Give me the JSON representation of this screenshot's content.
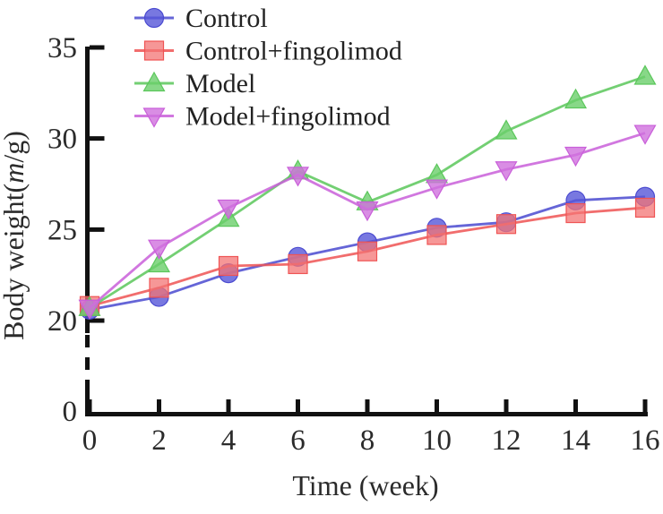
{
  "figure": {
    "background": "#ffffff",
    "axis_color": "#111111",
    "text_color": "#2b2b2b"
  },
  "chart_data": {
    "type": "line",
    "title": "",
    "xlabel": "Time (week)",
    "ylabel": "Body weight(m/g)",
    "ylabel_parts": {
      "prefix": "Body weight(",
      "italic": "m",
      "suffix": "/g)"
    },
    "x": [
      0,
      2,
      4,
      6,
      8,
      10,
      12,
      14,
      16
    ],
    "xticks": [
      0,
      2,
      4,
      6,
      8,
      10,
      12,
      14,
      16
    ],
    "yticks": [
      20,
      25,
      30,
      35
    ],
    "y_break_tick": 0,
    "ylim": [
      20,
      35
    ],
    "xlim": [
      0,
      16
    ],
    "axis_break_below": true,
    "grid": false,
    "legend_position": "upper-left-inside",
    "series": [
      {
        "name": "Control",
        "marker": "circle",
        "line_color": "#4a4ad0",
        "fill_color": "#5656d8",
        "values": [
          20.6,
          21.3,
          22.6,
          23.5,
          24.3,
          25.1,
          25.4,
          26.6,
          26.8
        ]
      },
      {
        "name": "Control+fingolimod",
        "marker": "square",
        "line_color": "#ef5454",
        "fill_color": "#f37474",
        "values": [
          20.8,
          21.8,
          23.0,
          23.1,
          23.8,
          24.7,
          25.3,
          25.9,
          26.2
        ]
      },
      {
        "name": "Model",
        "marker": "triangle-up",
        "line_color": "#5bc75b",
        "fill_color": "#6ace6a",
        "values": [
          20.7,
          23.1,
          25.6,
          28.2,
          26.5,
          28.0,
          30.4,
          32.1,
          33.4
        ]
      },
      {
        "name": "Model+fingolimod",
        "marker": "triangle-down",
        "line_color": "#c95fd9",
        "fill_color": "#cf70dd",
        "values": [
          20.7,
          24.0,
          26.2,
          28.0,
          26.1,
          27.3,
          28.3,
          29.1,
          30.3
        ]
      }
    ]
  }
}
